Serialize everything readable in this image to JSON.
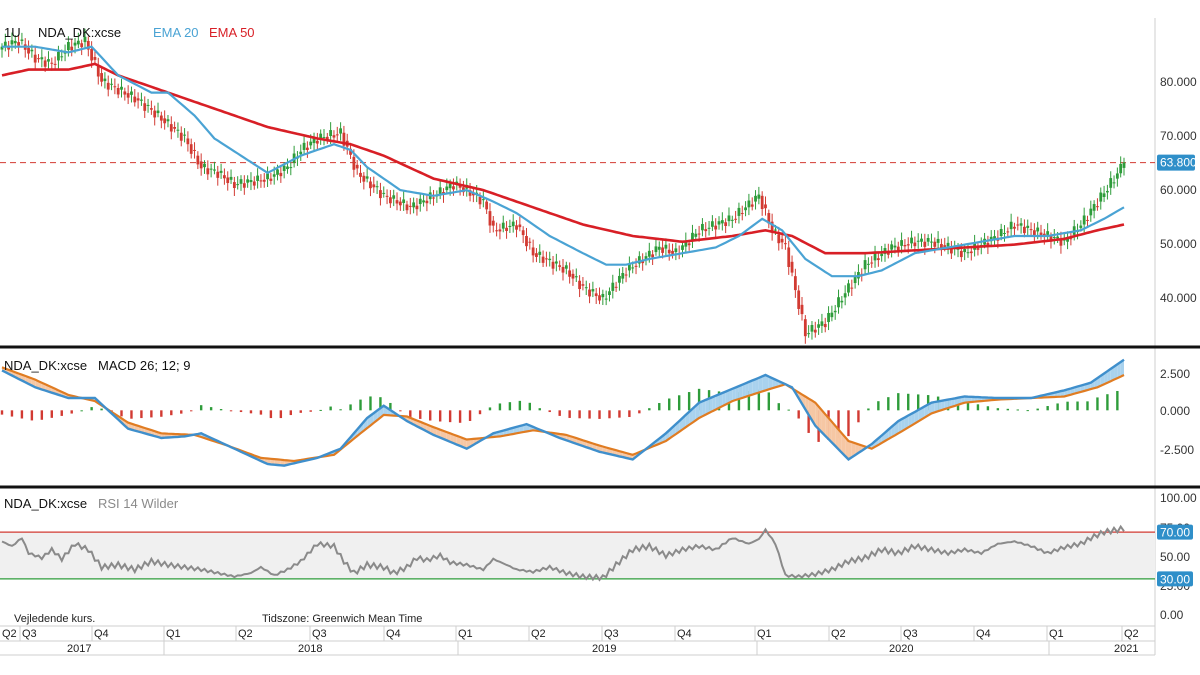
{
  "colors": {
    "ema20": "#4aa3d4",
    "ema50": "#d81f26",
    "up": "#2e9c3a",
    "down": "#d23a32",
    "macd": "#3f8fcc",
    "signal": "#e07c22",
    "rsi": "#8a8a8a",
    "rsi_upper": "#d23a32",
    "rsi_lower": "#2e9c3a",
    "badge": "#2f8fc9"
  },
  "price_panel": {
    "interval": "1U",
    "symbol": "NDA_DK:xcse",
    "ema20_label": "EMA 20",
    "ema50_label": "EMA 50",
    "last_price": "63.800",
    "y_ticks": [
      "80.000",
      "70.000",
      "60.000",
      "50.000",
      "40.000"
    ]
  },
  "macd_panel": {
    "symbol": "NDA_DK:xcse",
    "title": "MACD 26; 12; 9",
    "y_ticks": [
      "2.500",
      "0.000",
      "-2.500"
    ]
  },
  "rsi_panel": {
    "symbol": "NDA_DK:xcse",
    "title": "RSI 14 Wilder",
    "y_ticks": [
      "100.00",
      "75.00",
      "50.00",
      "25.00",
      "0.00"
    ],
    "upper_badge": "70.00",
    "lower_badge": "30.00"
  },
  "footer": {
    "note": "Vejledende kurs.",
    "timezone": "Tidszone: Greenwich Mean Time"
  },
  "time_axis": {
    "quarters": [
      "Q2",
      "Q3",
      "Q4",
      "Q1",
      "Q2",
      "Q3",
      "Q4",
      "Q1",
      "Q2",
      "Q3",
      "Q4",
      "Q1",
      "Q2",
      "Q3",
      "Q4",
      "Q1",
      "Q2"
    ],
    "years": [
      "2017",
      "2018",
      "2019",
      "2020",
      "2021"
    ]
  },
  "chart_data": {
    "type": "candlestick",
    "x_range": [
      "2017-Q2",
      "2021-Q2"
    ],
    "price": {
      "ylim": [
        32,
        89
      ],
      "last": 63.8,
      "close_anchors": [
        [
          0,
          84
        ],
        [
          5,
          85
        ],
        [
          10,
          82
        ],
        [
          15,
          81
        ],
        [
          20,
          84
        ],
        [
          25,
          85
        ],
        [
          30,
          78
        ],
        [
          40,
          75
        ],
        [
          47,
          72
        ],
        [
          55,
          68
        ],
        [
          60,
          63
        ],
        [
          65,
          62
        ],
        [
          70,
          60
        ],
        [
          80,
          61
        ],
        [
          86,
          63
        ],
        [
          90,
          66
        ],
        [
          95,
          68
        ],
        [
          102,
          69
        ],
        [
          107,
          62
        ],
        [
          115,
          58
        ],
        [
          123,
          56
        ],
        [
          130,
          58
        ],
        [
          136,
          60
        ],
        [
          140,
          59
        ],
        [
          145,
          57
        ],
        [
          148,
          52
        ],
        [
          155,
          53
        ],
        [
          160,
          48
        ],
        [
          170,
          45
        ],
        [
          175,
          42
        ],
        [
          181,
          40
        ],
        [
          188,
          45
        ],
        [
          193,
          47
        ],
        [
          198,
          49
        ],
        [
          203,
          48
        ],
        [
          210,
          52
        ],
        [
          220,
          54
        ],
        [
          228,
          58
        ],
        [
          232,
          52
        ],
        [
          236,
          49
        ],
        [
          242,
          34
        ],
        [
          248,
          36
        ],
        [
          255,
          42
        ],
        [
          260,
          46
        ],
        [
          268,
          49
        ],
        [
          275,
          50
        ],
        [
          280,
          50
        ],
        [
          290,
          48
        ],
        [
          300,
          51
        ],
        [
          305,
          53
        ],
        [
          310,
          52
        ],
        [
          320,
          50
        ],
        [
          325,
          53
        ],
        [
          330,
          57
        ],
        [
          335,
          61
        ],
        [
          338,
          63.8
        ]
      ],
      "ema20_anchors": [
        [
          0,
          84
        ],
        [
          10,
          84
        ],
        [
          20,
          83
        ],
        [
          27,
          84
        ],
        [
          35,
          79
        ],
        [
          45,
          76
        ],
        [
          50,
          76
        ],
        [
          58,
          72
        ],
        [
          64,
          68
        ],
        [
          72,
          65
        ],
        [
          80,
          62
        ],
        [
          90,
          65
        ],
        [
          100,
          67
        ],
        [
          105,
          66
        ],
        [
          110,
          63
        ],
        [
          120,
          59
        ],
        [
          130,
          58
        ],
        [
          140,
          59
        ],
        [
          148,
          57
        ],
        [
          155,
          55
        ],
        [
          165,
          51
        ],
        [
          175,
          48
        ],
        [
          182,
          46
        ],
        [
          188,
          46
        ],
        [
          195,
          47
        ],
        [
          205,
          48
        ],
        [
          215,
          49
        ],
        [
          222,
          51
        ],
        [
          229,
          54
        ],
        [
          235,
          52
        ],
        [
          242,
          47
        ],
        [
          250,
          44
        ],
        [
          258,
          44
        ],
        [
          265,
          45
        ],
        [
          275,
          48
        ],
        [
          285,
          49
        ],
        [
          295,
          50
        ],
        [
          305,
          51
        ],
        [
          315,
          51
        ],
        [
          325,
          52
        ],
        [
          332,
          54
        ],
        [
          338,
          56
        ]
      ],
      "ema50_anchors": [
        [
          0,
          79
        ],
        [
          8,
          80
        ],
        [
          20,
          80
        ],
        [
          28,
          81
        ],
        [
          35,
          79
        ],
        [
          50,
          76
        ],
        [
          65,
          73
        ],
        [
          80,
          70
        ],
        [
          95,
          68
        ],
        [
          105,
          67
        ],
        [
          115,
          65
        ],
        [
          130,
          61
        ],
        [
          145,
          59
        ],
        [
          160,
          56
        ],
        [
          175,
          53
        ],
        [
          190,
          51
        ],
        [
          205,
          50
        ],
        [
          220,
          51
        ],
        [
          230,
          52
        ],
        [
          238,
          51
        ],
        [
          248,
          48
        ],
        [
          260,
          48
        ],
        [
          275,
          48.5
        ],
        [
          290,
          49
        ],
        [
          305,
          49.5
        ],
        [
          320,
          50.5
        ],
        [
          330,
          52
        ],
        [
          338,
          53
        ]
      ]
    },
    "macd": {
      "ylim": [
        -4.8,
        3.8
      ],
      "macd_anchors": [
        [
          0,
          2.6
        ],
        [
          10,
          1.5
        ],
        [
          20,
          0.8
        ],
        [
          28,
          0.8
        ],
        [
          38,
          -1.2
        ],
        [
          48,
          -1.8
        ],
        [
          55,
          -1.7
        ],
        [
          60,
          -1.5
        ],
        [
          70,
          -2.5
        ],
        [
          80,
          -3.5
        ],
        [
          85,
          -3.6
        ],
        [
          95,
          -3.1
        ],
        [
          102,
          -2.5
        ],
        [
          110,
          -0.5
        ],
        [
          115,
          0.3
        ],
        [
          122,
          -0.7
        ],
        [
          130,
          -1.6
        ],
        [
          140,
          -2.5
        ],
        [
          148,
          -1.5
        ],
        [
          158,
          -0.9
        ],
        [
          168,
          -1.8
        ],
        [
          180,
          -2.7
        ],
        [
          190,
          -3.2
        ],
        [
          200,
          -1.5
        ],
        [
          210,
          0.5
        ],
        [
          220,
          1.4
        ],
        [
          230,
          2.3
        ],
        [
          238,
          1.5
        ],
        [
          245,
          -1.0
        ],
        [
          255,
          -3.2
        ],
        [
          262,
          -2.2
        ],
        [
          270,
          -0.7
        ],
        [
          280,
          0.5
        ],
        [
          290,
          0.9
        ],
        [
          300,
          0.8
        ],
        [
          310,
          0.8
        ],
        [
          320,
          1.3
        ],
        [
          328,
          1.8
        ],
        [
          338,
          3.3
        ]
      ],
      "signal_anchors": [
        [
          0,
          2.8
        ],
        [
          10,
          2.0
        ],
        [
          20,
          1.0
        ],
        [
          28,
          0.6
        ],
        [
          38,
          -0.8
        ],
        [
          48,
          -1.5
        ],
        [
          58,
          -1.6
        ],
        [
          68,
          -2.3
        ],
        [
          78,
          -3.1
        ],
        [
          88,
          -3.3
        ],
        [
          100,
          -2.9
        ],
        [
          108,
          -1.5
        ],
        [
          115,
          -0.3
        ],
        [
          122,
          -0.4
        ],
        [
          130,
          -1.1
        ],
        [
          140,
          -1.9
        ],
        [
          150,
          -1.7
        ],
        [
          160,
          -1.3
        ],
        [
          170,
          -1.6
        ],
        [
          180,
          -2.3
        ],
        [
          190,
          -2.9
        ],
        [
          200,
          -2.0
        ],
        [
          210,
          -0.5
        ],
        [
          220,
          0.6
        ],
        [
          230,
          1.3
        ],
        [
          236,
          1.7
        ],
        [
          245,
          0.5
        ],
        [
          255,
          -2.0
        ],
        [
          262,
          -2.5
        ],
        [
          270,
          -1.5
        ],
        [
          280,
          -0.2
        ],
        [
          290,
          0.5
        ],
        [
          300,
          0.7
        ],
        [
          310,
          0.8
        ],
        [
          320,
          0.9
        ],
        [
          330,
          1.5
        ],
        [
          338,
          2.3
        ]
      ]
    },
    "rsi": {
      "ylim": [
        0,
        100
      ],
      "upper": 70,
      "lower": 30,
      "anchors": [
        [
          0,
          62
        ],
        [
          3,
          58
        ],
        [
          6,
          65
        ],
        [
          8,
          52
        ],
        [
          12,
          48
        ],
        [
          15,
          55
        ],
        [
          18,
          47
        ],
        [
          22,
          60
        ],
        [
          26,
          55
        ],
        [
          30,
          40
        ],
        [
          35,
          42
        ],
        [
          40,
          38
        ],
        [
          45,
          45
        ],
        [
          50,
          42
        ],
        [
          55,
          40
        ],
        [
          60,
          38
        ],
        [
          65,
          35
        ],
        [
          70,
          32
        ],
        [
          75,
          35
        ],
        [
          78,
          40
        ],
        [
          82,
          33
        ],
        [
          86,
          38
        ],
        [
          90,
          45
        ],
        [
          95,
          60
        ],
        [
          100,
          58
        ],
        [
          103,
          45
        ],
        [
          106,
          35
        ],
        [
          110,
          42
        ],
        [
          115,
          40
        ],
        [
          118,
          35
        ],
        [
          122,
          40
        ],
        [
          125,
          48
        ],
        [
          128,
          46
        ],
        [
          132,
          50
        ],
        [
          135,
          44
        ],
        [
          140,
          42
        ],
        [
          145,
          38
        ],
        [
          148,
          47
        ],
        [
          152,
          42
        ],
        [
          155,
          38
        ],
        [
          160,
          36
        ],
        [
          165,
          40
        ],
        [
          170,
          35
        ],
        [
          175,
          32
        ],
        [
          181,
          31
        ],
        [
          185,
          42
        ],
        [
          190,
          55
        ],
        [
          195,
          58
        ],
        [
          200,
          50
        ],
        [
          205,
          55
        ],
        [
          210,
          58
        ],
        [
          215,
          55
        ],
        [
          220,
          65
        ],
        [
          225,
          60
        ],
        [
          228,
          64
        ],
        [
          230,
          72
        ],
        [
          233,
          60
        ],
        [
          236,
          33
        ],
        [
          240,
          32
        ],
        [
          245,
          34
        ],
        [
          250,
          38
        ],
        [
          255,
          45
        ],
        [
          260,
          48
        ],
        [
          265,
          55
        ],
        [
          270,
          52
        ],
        [
          275,
          58
        ],
        [
          280,
          55
        ],
        [
          285,
          52
        ],
        [
          290,
          55
        ],
        [
          295,
          52
        ],
        [
          300,
          60
        ],
        [
          305,
          62
        ],
        [
          310,
          58
        ],
        [
          315,
          52
        ],
        [
          320,
          57
        ],
        [
          325,
          60
        ],
        [
          328,
          65
        ],
        [
          332,
          70
        ],
        [
          338,
          73
        ]
      ]
    }
  }
}
